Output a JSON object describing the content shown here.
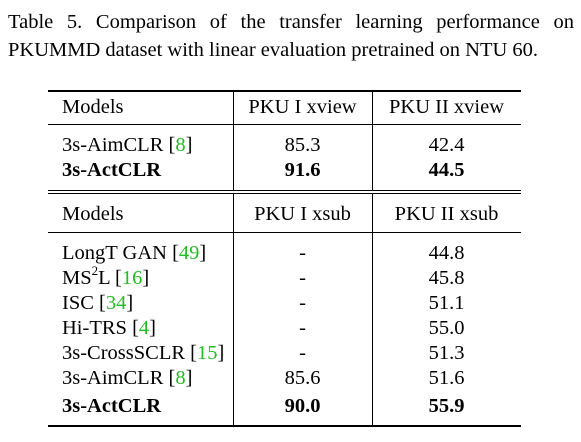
{
  "caption": {
    "line1": "Table 5.  Comparison of the transfer learning performance on",
    "line2": "PKUMMD dataset with linear evaluation pretrained on NTU 60."
  },
  "table1": {
    "headers": [
      "Models",
      "PKU I xview",
      "PKU II xview"
    ],
    "rows": [
      {
        "model": "3s-AimCLR",
        "ref": "8",
        "v1": "85.3",
        "v2": "42.4",
        "bold": false
      },
      {
        "model": "3s-ActCLR",
        "ref": "",
        "v1": "91.6",
        "v2": "44.5",
        "bold": true
      }
    ]
  },
  "table2": {
    "headers": [
      "Models",
      "PKU I xsub",
      "PKU II xsub"
    ],
    "rows": [
      {
        "model": "LongT GAN",
        "ref": "49",
        "v1": "-",
        "v2": "44.8",
        "bold": false
      },
      {
        "model": "MS",
        "sup": "2",
        "model_suffix": "L",
        "ref": "16",
        "v1": "-",
        "v2": "45.8",
        "bold": false
      },
      {
        "model": "ISC",
        "ref": "34",
        "v1": "-",
        "v2": "51.1",
        "bold": false
      },
      {
        "model": "Hi-TRS",
        "ref": "4",
        "v1": "-",
        "v2": "55.0",
        "bold": false
      },
      {
        "model": "3s-CrossSCLR",
        "ref": "15",
        "v1": "-",
        "v2": "51.3",
        "bold": false
      },
      {
        "model": "3s-AimCLR",
        "ref": "8",
        "v1": "85.6",
        "v2": "51.6",
        "bold": false
      },
      {
        "model": "3s-ActCLR",
        "ref": "",
        "v1": "90.0",
        "v2": "55.9",
        "bold": true
      }
    ]
  },
  "colors": {
    "citation": "#1fbf1f"
  }
}
